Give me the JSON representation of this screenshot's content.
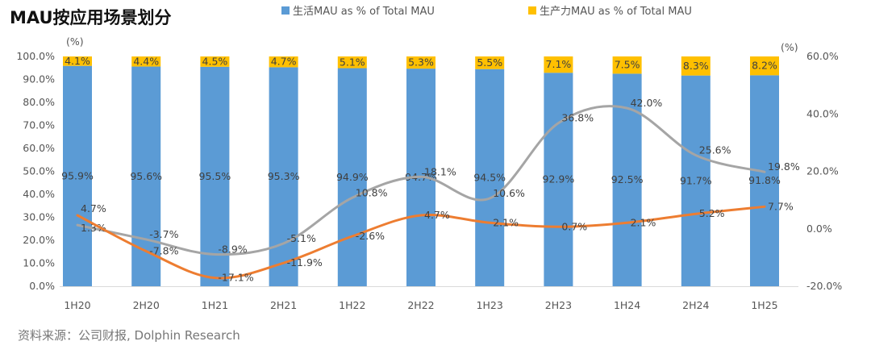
{
  "title": "MAU按应用场景划分",
  "source": "资料来源：公司财报, Dolphin Research",
  "chart_data": {
    "type": "bar+line",
    "title": "MAU按应用场景划分",
    "categories": [
      "1H20",
      "2H20",
      "1H21",
      "2H21",
      "1H22",
      "2H22",
      "1H23",
      "2H23",
      "1H24",
      "2H24",
      "1H25"
    ],
    "left_axis": {
      "unit_label": "(%)",
      "ylim": [
        0,
        100
      ],
      "ticks": [
        "0.0%",
        "10.0%",
        "20.0%",
        "30.0%",
        "40.0%",
        "50.0%",
        "60.0%",
        "70.0%",
        "80.0%",
        "90.0%",
        "100.0%"
      ]
    },
    "right_axis": {
      "unit_label": "(%)",
      "ylim": [
        -20,
        60
      ],
      "ticks": [
        "-20.0%",
        "0.0%",
        "20.0%",
        "40.0%",
        "60.0%"
      ]
    },
    "legend_position": "top",
    "grid": false,
    "bar_series": [
      {
        "name": "生活MAU as % of Total MAU",
        "color": "#5B9BD5",
        "values": [
          95.9,
          95.6,
          95.5,
          95.3,
          94.9,
          94.7,
          94.5,
          92.9,
          92.5,
          91.7,
          91.8
        ]
      },
      {
        "name": "生产力MAU as % of Total MAU",
        "color": "#FFC000",
        "values": [
          4.1,
          4.4,
          4.5,
          4.7,
          5.1,
          5.3,
          5.5,
          7.1,
          7.5,
          8.3,
          8.2
        ]
      }
    ],
    "line_series": [
      {
        "color": "#A5A5A5",
        "axis": "right",
        "values": [
          1.3,
          -3.7,
          -8.9,
          -5.1,
          10.8,
          18.1,
          10.6,
          36.8,
          42.0,
          25.6,
          19.8
        ]
      },
      {
        "color": "#ED7D31",
        "axis": "right",
        "values": [
          4.7,
          -7.8,
          -17.1,
          -11.9,
          -2.6,
          4.7,
          2.1,
          0.7,
          2.1,
          5.2,
          7.7
        ]
      }
    ]
  }
}
